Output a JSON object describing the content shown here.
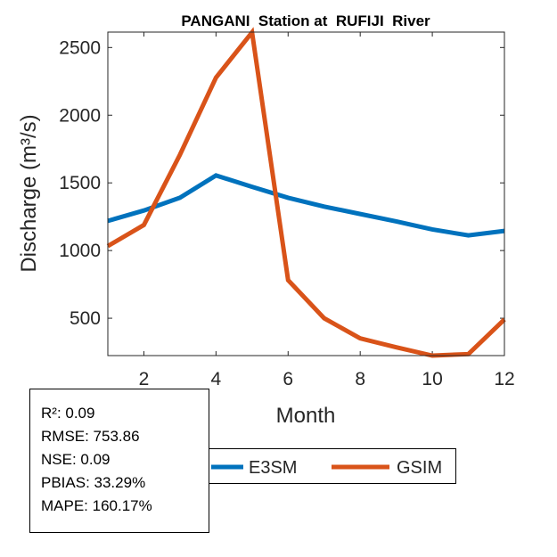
{
  "chart_data": {
    "type": "line",
    "title": "PANGANI  Station at  RUFIJI  River",
    "xlabel": "Month",
    "ylabel": "Discharge (m³/s)",
    "xlim": [
      1,
      12
    ],
    "ylim": [
      224,
      2614
    ],
    "xticks": [
      2,
      4,
      6,
      8,
      10,
      12
    ],
    "yticks": [
      500,
      1000,
      1500,
      2000,
      2500
    ],
    "x": [
      1,
      2,
      3,
      4,
      5,
      6,
      7,
      8,
      9,
      10,
      11,
      12
    ],
    "series": [
      {
        "name": "E3SM",
        "color": "#0072BD",
        "values": [
          1219,
          1296,
          1390,
          1555,
          1471,
          1390,
          1325,
          1270,
          1215,
          1156,
          1112,
          1145
        ]
      },
      {
        "name": "GSIM",
        "color": "#D95319",
        "values": [
          1033,
          1189,
          1708,
          2278,
          2612,
          781,
          500,
          351,
          285,
          224,
          235,
          491
        ]
      }
    ],
    "legend_position": "bottom"
  },
  "stats": [
    "R²: 0.09",
    "RMSE: 753.86",
    "NSE: 0.09",
    "PBIAS: 33.29%",
    "MAPE: 160.17%"
  ]
}
